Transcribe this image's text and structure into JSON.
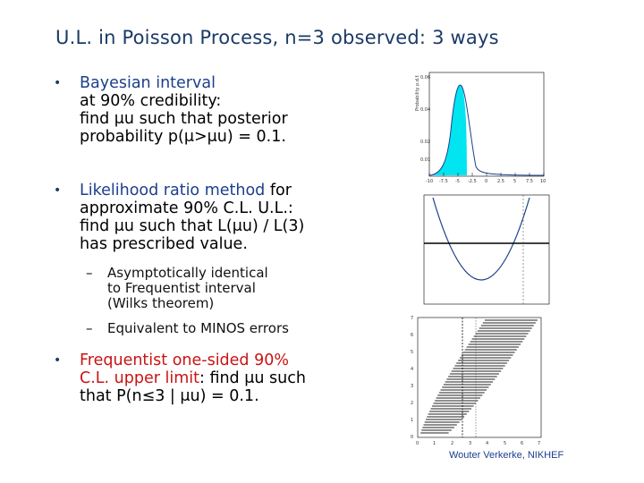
{
  "title": "U.L. in Poisson Process, n=3 observed: 3 ways",
  "bullets": [
    {
      "lines": [
        "Bayesian interval",
        "at 90% credibility:",
        "find μu such that posterior",
        "probability p(μ>μu) = 0.1."
      ]
    },
    {
      "line1_highlight": "Likelihood ratio method",
      "line1_rest": " for",
      "lines": [
        "approximate 90% C.L. U.L.:",
        "find μu such that L(μu) / L(3)",
        "has prescribed value."
      ]
    },
    {
      "line1": "Frequentist one-sided 90%",
      "line2_highlight": "C.L. upper limit",
      "line2_rest": ": find μu such",
      "line3": "that P(n≤3 | μu) = 0.1."
    }
  ],
  "sub_bullets": [
    {
      "lines": [
        "Asymptotically identical",
        "to Frequentist interval",
        "(Wilks theorem)"
      ]
    },
    {
      "lines": [
        "Equivalent to MINOS errors"
      ]
    }
  ],
  "footer": "Wouter Verkerke, NIKHEF",
  "plot1": {
    "ylabel": "Probability p.d.f.",
    "yticks": [
      "0.06",
      "0.04",
      "0.02",
      "0.01"
    ],
    "xticks": [
      "-10",
      "-7.5",
      "-5",
      "-2.5",
      "0",
      "2.5",
      "5",
      "7.5",
      "10"
    ],
    "fill_color": "#00e5f0"
  },
  "plot3": {
    "yticks": [
      "7",
      "6",
      "5",
      "4",
      "3",
      "2",
      "1",
      "0"
    ],
    "xticks": [
      "0",
      "1",
      "2",
      "3",
      "4",
      "5",
      "6",
      "7"
    ]
  }
}
